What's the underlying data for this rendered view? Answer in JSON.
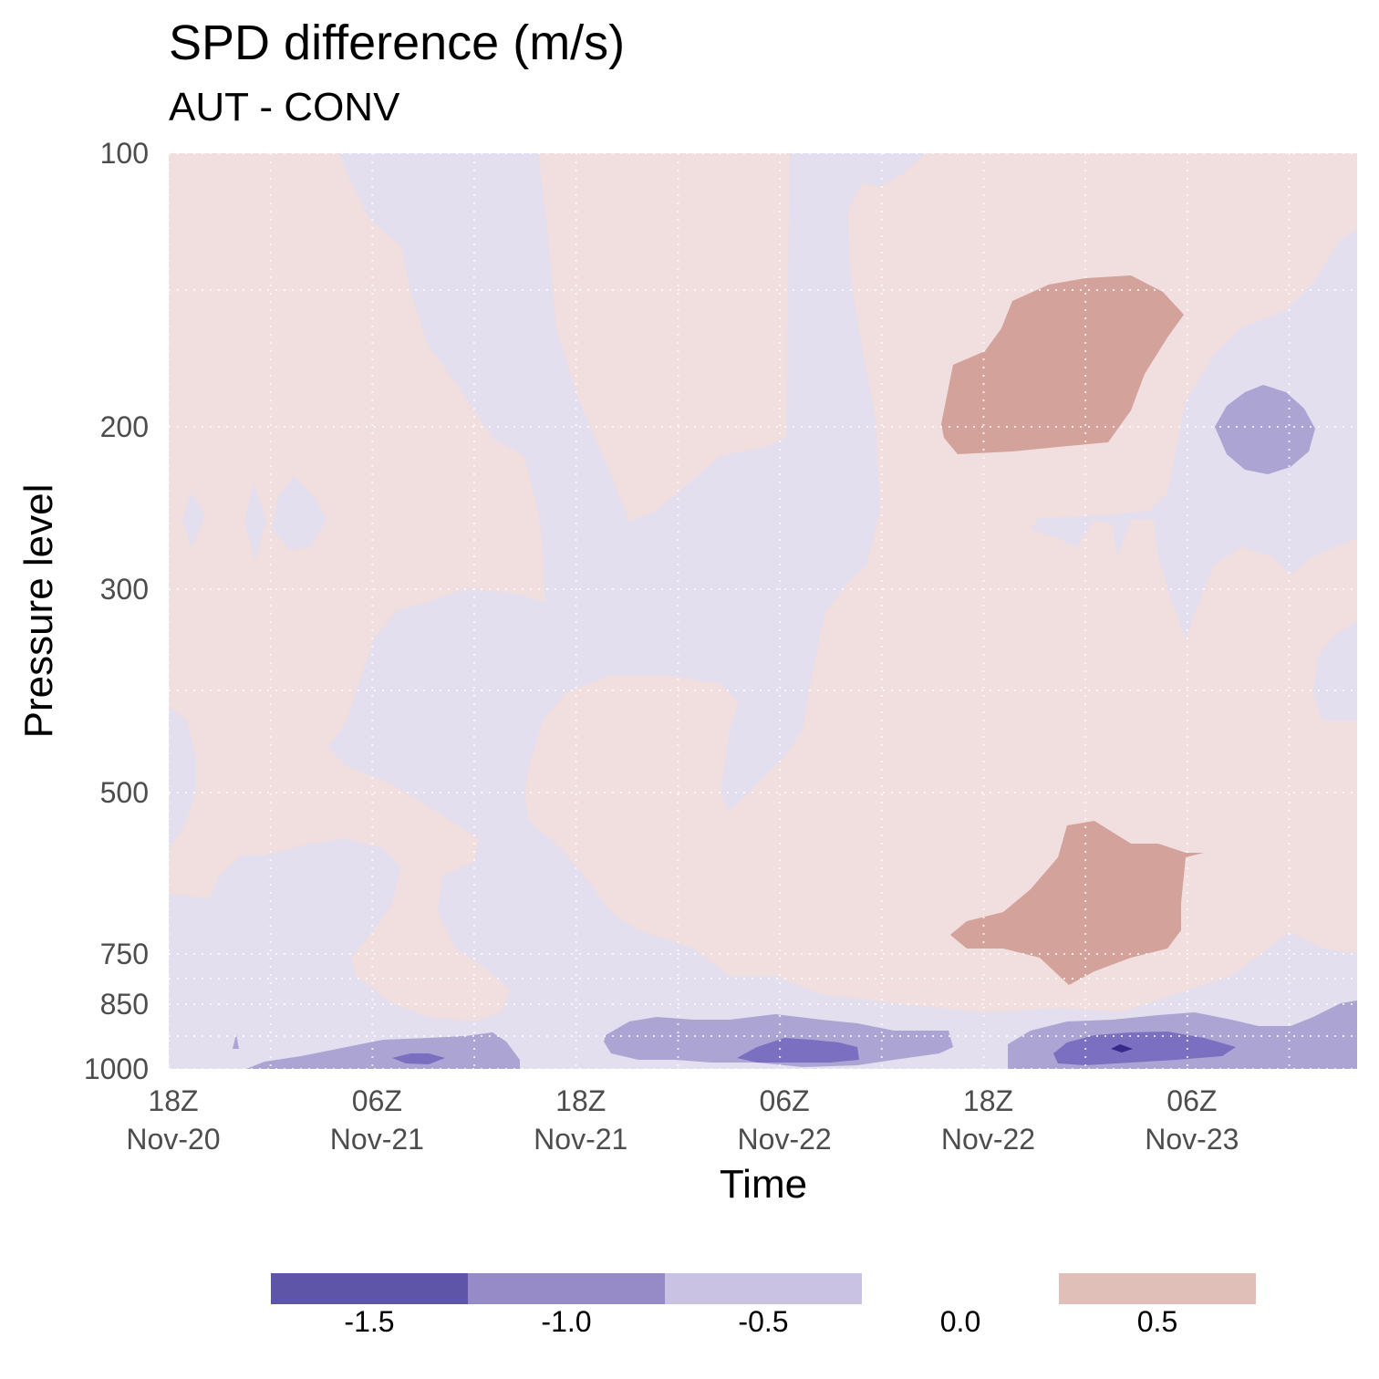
{
  "chart_data": {
    "type": "heatmap",
    "title": "SPD difference (m/s)",
    "subtitle": "AUT - CONV",
    "xlabel": "Time",
    "ylabel": "Pressure level",
    "x_ticks": [
      {
        "line1": "18Z",
        "line2": "Nov-20",
        "hours": 0
      },
      {
        "line1": "06Z",
        "line2": "Nov-21",
        "hours": 12
      },
      {
        "line1": "18Z",
        "line2": "Nov-21",
        "hours": 24
      },
      {
        "line1": "06Z",
        "line2": "Nov-22",
        "hours": 36
      },
      {
        "line1": "18Z",
        "line2": "Nov-22",
        "hours": 48
      },
      {
        "line1": "06Z",
        "line2": "Nov-23",
        "hours": 60
      }
    ],
    "xlim_hours": [
      0,
      70
    ],
    "y_ticks": [
      "100",
      "200",
      "300",
      "500",
      "750",
      "850",
      "1000"
    ],
    "y_scale": "categorical pressure levels (reversed)",
    "grid": true,
    "legend": {
      "position": "bottom",
      "entries": [
        {
          "label": "-1.5",
          "color": "#5e55a8"
        },
        {
          "label": "-1.0",
          "color": "#968bc6"
        },
        {
          "label": "-0.5",
          "color": "#c9c2e2"
        },
        {
          "label": "0.0",
          "color": null
        },
        {
          "label": "0.5",
          "color": "#dfbfb8"
        }
      ]
    },
    "fill_colors": {
      "neg_small": "#e3dfef",
      "pos_small": "#f1dede",
      "pos_mid": "#d2a29b",
      "neg_mid": "#aca4d3",
      "neg_strong": "#7a6fc0",
      "neg_max": "#37288c"
    }
  }
}
